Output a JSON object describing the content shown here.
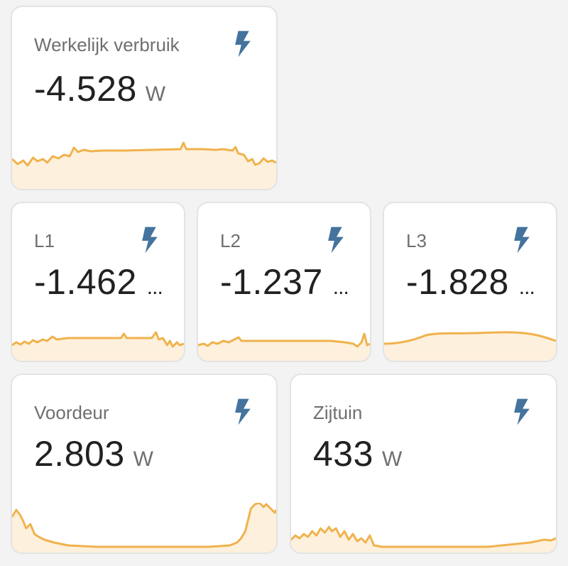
{
  "theme": {
    "accent": "#f0b24c",
    "fill": "#fdf0dc",
    "icon_color": "#44739e"
  },
  "cards": {
    "werkelijk": {
      "name": "Werkelijk verbruik",
      "value": "-4.528",
      "unit": "W",
      "icon": "flash-icon"
    },
    "l1": {
      "name": "L1",
      "value": "-1.462",
      "unit": "...",
      "icon": "flash-icon"
    },
    "l2": {
      "name": "L2",
      "value": "-1.237",
      "unit": "...",
      "icon": "flash-icon"
    },
    "l3": {
      "name": "L3",
      "value": "-1.828",
      "unit": "...",
      "icon": "flash-icon"
    },
    "voordeur": {
      "name": "Voordeur",
      "value": "2.803",
      "unit": "W",
      "icon": "flash-icon"
    },
    "zijtuin": {
      "name": "Zijtuin",
      "value": "433",
      "unit": "W",
      "icon": "flash-icon"
    }
  }
}
